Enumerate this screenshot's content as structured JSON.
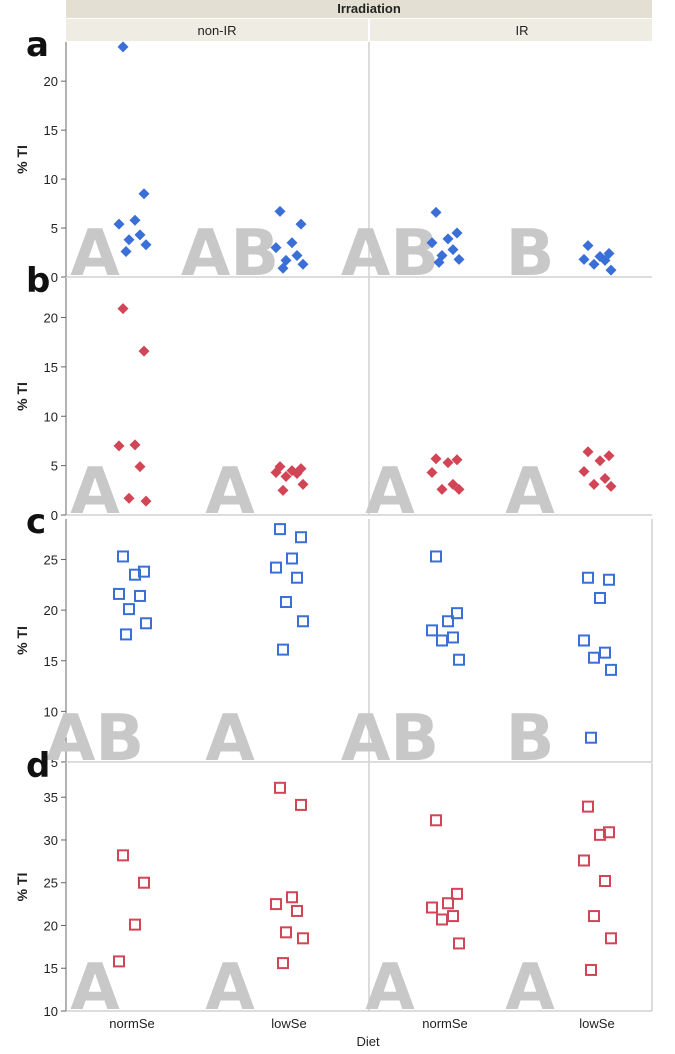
{
  "header": {
    "group_title": "Irradiation",
    "facets": [
      "non-IR",
      "IR"
    ]
  },
  "x_axis": {
    "label": "Diet",
    "categories": [
      "normSe",
      "lowSe",
      "normSe",
      "lowSe"
    ]
  },
  "colors": {
    "blue": "#3a6fd8",
    "red": "#d14556",
    "header_bg": "#e3e0d3",
    "grid_line": "#d0d0d0",
    "letter_gray": "#c8c8c8"
  },
  "chart_data": [
    {
      "panel": "a",
      "type": "scatter",
      "marker": "filled-diamond",
      "color": "blue",
      "ylabel": "% TI",
      "ylim": [
        0,
        24
      ],
      "yticks": [
        0,
        5,
        10,
        15,
        20
      ],
      "groups": [
        {
          "facet": "non-IR",
          "category": "normSe",
          "letter": "A",
          "values": [
            23.5,
            8.5,
            5.8,
            5.4,
            4.3,
            3.8,
            3.3,
            2.6
          ]
        },
        {
          "facet": "non-IR",
          "category": "lowSe",
          "letter": "AB",
          "values": [
            6.7,
            5.4,
            3.5,
            3.0,
            2.2,
            1.7,
            1.3,
            0.9
          ]
        },
        {
          "facet": "IR",
          "category": "normSe",
          "letter": "AB",
          "values": [
            6.6,
            4.5,
            3.9,
            3.5,
            2.8,
            2.2,
            1.8,
            1.5
          ]
        },
        {
          "facet": "IR",
          "category": "lowSe",
          "letter": "B",
          "values": [
            3.2,
            2.4,
            2.1,
            1.8,
            1.7,
            1.3,
            0.7
          ]
        }
      ]
    },
    {
      "panel": "b",
      "type": "scatter",
      "marker": "filled-diamond",
      "color": "red",
      "ylabel": "% TI",
      "ylim": [
        0,
        24
      ],
      "yticks": [
        0,
        5,
        10,
        15,
        20
      ],
      "groups": [
        {
          "facet": "non-IR",
          "category": "normSe",
          "letter": "A",
          "values": [
            20.9,
            16.6,
            7.1,
            7.0,
            4.9,
            1.7,
            1.4
          ]
        },
        {
          "facet": "non-IR",
          "category": "lowSe",
          "letter": "A",
          "values": [
            4.9,
            4.7,
            4.5,
            4.3,
            4.2,
            3.9,
            3.1,
            2.5
          ]
        },
        {
          "facet": "IR",
          "category": "normSe",
          "letter": "A",
          "values": [
            5.7,
            5.6,
            5.3,
            4.3,
            3.1,
            2.6,
            2.6
          ]
        },
        {
          "facet": "IR",
          "category": "lowSe",
          "letter": "A",
          "values": [
            6.4,
            6.0,
            5.5,
            4.4,
            3.7,
            3.1,
            2.9
          ]
        }
      ]
    },
    {
      "panel": "c",
      "type": "scatter",
      "marker": "open-square",
      "color": "blue",
      "ylabel": "% TI",
      "ylim": [
        5,
        29
      ],
      "yticks": [
        5,
        10,
        15,
        20,
        25
      ],
      "groups": [
        {
          "facet": "non-IR",
          "category": "normSe",
          "letter": "AB",
          "values": [
            25.3,
            23.8,
            23.5,
            21.6,
            21.4,
            20.1,
            18.7,
            17.6
          ]
        },
        {
          "facet": "non-IR",
          "category": "lowSe",
          "letter": "A",
          "values": [
            28.0,
            27.2,
            25.1,
            24.2,
            23.2,
            20.8,
            18.9,
            16.1
          ]
        },
        {
          "facet": "IR",
          "category": "normSe",
          "letter": "AB",
          "values": [
            25.3,
            19.7,
            18.9,
            18.0,
            17.3,
            17.0,
            15.1
          ]
        },
        {
          "facet": "IR",
          "category": "lowSe",
          "letter": "B",
          "values": [
            23.2,
            23.0,
            21.2,
            17.0,
            15.8,
            15.3,
            14.1,
            7.4
          ]
        }
      ]
    },
    {
      "panel": "d",
      "type": "scatter",
      "marker": "open-square",
      "color": "red",
      "ylabel": "% TI",
      "ylim": [
        10,
        39
      ],
      "yticks": [
        10,
        15,
        20,
        25,
        30,
        35
      ],
      "groups": [
        {
          "facet": "non-IR",
          "category": "normSe",
          "letter": "A",
          "values": [
            28.2,
            25.0,
            20.1,
            15.8
          ]
        },
        {
          "facet": "non-IR",
          "category": "lowSe",
          "letter": "A",
          "values": [
            36.1,
            34.1,
            23.3,
            22.5,
            21.7,
            19.2,
            18.5,
            15.6
          ]
        },
        {
          "facet": "IR",
          "category": "normSe",
          "letter": "A",
          "values": [
            32.3,
            23.7,
            22.6,
            22.1,
            21.1,
            20.7,
            17.9
          ]
        },
        {
          "facet": "IR",
          "category": "lowSe",
          "letter": "A",
          "values": [
            33.9,
            30.9,
            30.6,
            27.6,
            25.2,
            21.1,
            18.5,
            14.8
          ]
        }
      ]
    }
  ]
}
